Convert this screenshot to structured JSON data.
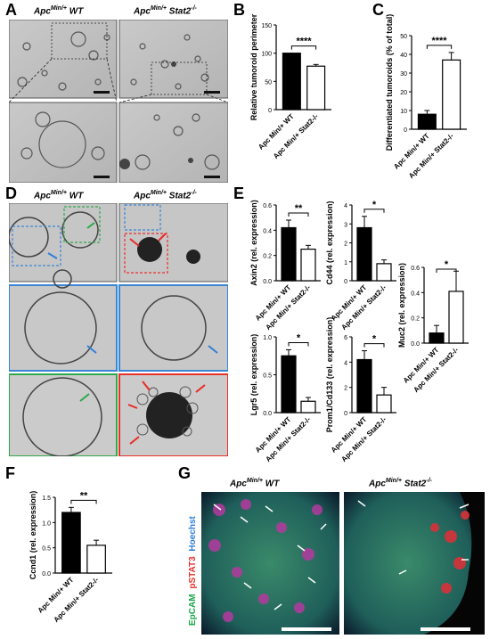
{
  "panel_labels": {
    "A": "A",
    "B": "B",
    "C": "C",
    "D": "D",
    "E": "E",
    "F": "F",
    "G": "G"
  },
  "headers": {
    "wt_prefix": "Apc",
    "wt_sup": "Min/+",
    "wt_suffix": " WT",
    "ko_prefix": "Apc",
    "ko_sup": "Min/+",
    "ko_suffix": " Stat2",
    "ko_sup2": "-/-"
  },
  "stain_labels": {
    "epcam": "EpCAM",
    "pstat3": "pSTAT3",
    "hoechst": "Hoechst"
  },
  "group_labels": {
    "wt": "Apc Min/+ WT",
    "ko": "Apc Min/+ Stat2-/-"
  },
  "colors": {
    "wt_bar": "#000000",
    "ko_bar": "#ffffff",
    "blue_box": "#3a86d6",
    "green_box": "#2eaa4a",
    "red_box": "#e8302a",
    "arrow_blue": "#2f7fd8",
    "arrow_green": "#2aa84a",
    "arrow_red": "#e82a22"
  },
  "chart_data": [
    {
      "id": "B",
      "type": "bar",
      "categories": [
        "Apc Min/+ WT",
        "Apc Min/+ Stat2-/-"
      ],
      "values": [
        100,
        77
      ],
      "errors": [
        0,
        3
      ],
      "ylabel": "Relative tumoroid perimeter",
      "ylim": [
        0,
        150
      ],
      "yticks": [
        0,
        50,
        100,
        150
      ],
      "significance": "****"
    },
    {
      "id": "C",
      "type": "bar",
      "categories": [
        "Apc Min/+ WT",
        "Apc Min/+ Stat2-/-"
      ],
      "values": [
        8,
        37
      ],
      "errors": [
        2,
        4
      ],
      "ylabel": "Differentiated tumoroids (% of total)",
      "ylim": [
        0,
        50
      ],
      "yticks": [
        0,
        10,
        20,
        30,
        40,
        50
      ],
      "significance": "****"
    },
    {
      "id": "E1",
      "type": "bar",
      "categories": [
        "Apc Min/+ WT",
        "Apc Min/+ Stat2-/-"
      ],
      "values": [
        0.42,
        0.25
      ],
      "errors": [
        0.06,
        0.03
      ],
      "ylabel": "Axin2 (rel. expression)",
      "ylim": [
        0,
        0.6
      ],
      "yticks": [
        "0.0",
        "0.2",
        "0.4",
        "0.6"
      ],
      "significance": "**"
    },
    {
      "id": "E2",
      "type": "bar",
      "categories": [
        "Apc Min/+ WT",
        "Apc Min/+ Stat2-/-"
      ],
      "values": [
        2.8,
        0.9
      ],
      "errors": [
        0.6,
        0.2
      ],
      "ylabel": "Cd44 (rel. expression)",
      "ylim": [
        0,
        4
      ],
      "yticks": [
        0,
        1,
        2,
        3,
        4
      ],
      "significance": "*"
    },
    {
      "id": "E3",
      "type": "bar",
      "categories": [
        "Apc Min/+ WT",
        "Apc Min/+ Stat2-/-"
      ],
      "values": [
        0.08,
        0.41
      ],
      "errors": [
        0.06,
        0.16
      ],
      "ylabel": "Muc2 (rel. expression)",
      "ylim": [
        0,
        0.6
      ],
      "yticks": [
        "0.0",
        "0.2",
        "0.4",
        "0.6"
      ],
      "significance": "*"
    },
    {
      "id": "E4",
      "type": "bar",
      "categories": [
        "Apc Min/+ WT",
        "Apc Min/+ Stat2-/-"
      ],
      "values": [
        0.75,
        0.15
      ],
      "errors": [
        0.08,
        0.05
      ],
      "ylabel": "Lgr5 (rel. expression)",
      "ylim": [
        0,
        1.0
      ],
      "yticks": [
        "0.0",
        "0.5",
        "1.0"
      ],
      "significance": "*"
    },
    {
      "id": "E5",
      "type": "bar",
      "categories": [
        "Apc Min/+ WT",
        "Apc Min/+ Stat2-/-"
      ],
      "values": [
        4.2,
        1.4
      ],
      "errors": [
        0.7,
        0.6
      ],
      "ylabel": "Prom1/Cd133 (rel. expression)",
      "ylim": [
        0,
        6
      ],
      "yticks": [
        0,
        2,
        4,
        6
      ],
      "significance": "*"
    },
    {
      "id": "F",
      "type": "bar",
      "categories": [
        "Apc Min/+ WT",
        "Apc Min/+ Stat2-/-"
      ],
      "values": [
        1.2,
        0.55
      ],
      "errors": [
        0.1,
        0.1
      ],
      "ylabel": "Ccnd1 (rel. expression)",
      "ylim": [
        0,
        1.5
      ],
      "yticks": [
        "0.0",
        "0.5",
        "1.0",
        "1.5"
      ],
      "significance": "**"
    }
  ]
}
